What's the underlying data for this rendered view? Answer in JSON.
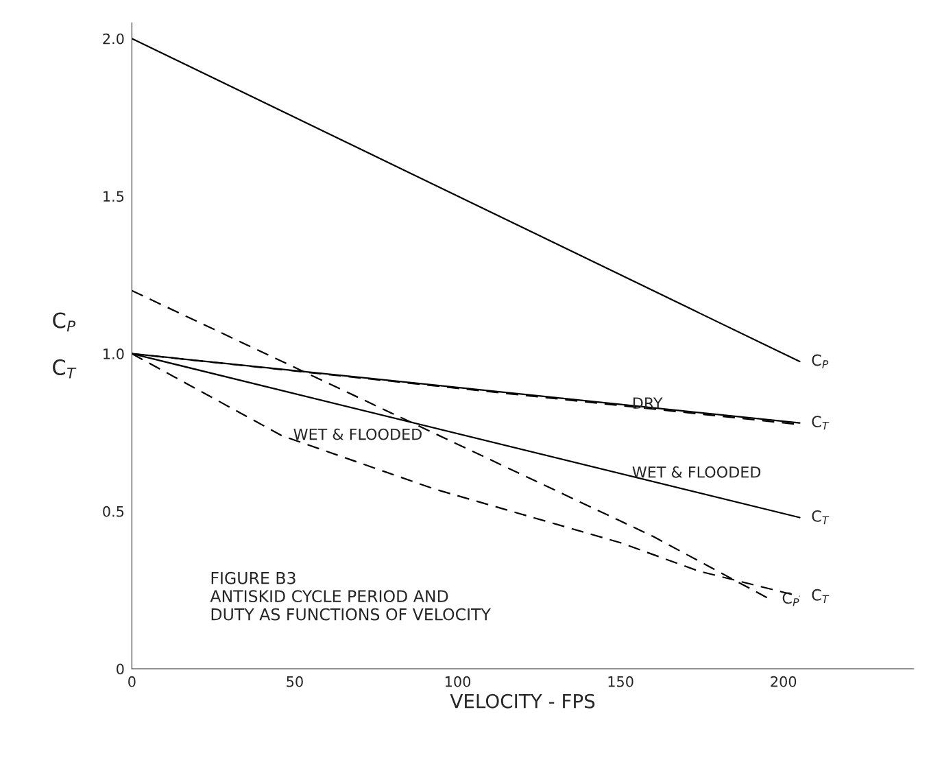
{
  "chart_data": {
    "type": "line",
    "xlabel": "VELOCITY - FPS",
    "ylabel": "C$_{P}$\n\nC$_{T}$",
    "xlim": [
      0,
      240
    ],
    "xticks": [
      0,
      50,
      100,
      150,
      200
    ],
    "ylim": [
      0,
      2.05
    ],
    "yticks": [
      0,
      {
        "value": 0.5,
        "label": "0.5"
      },
      {
        "value": 1.0,
        "label": "1.0"
      },
      {
        "value": 1.5,
        "label": "1.5"
      },
      {
        "value": 2.0,
        "label": "2.0"
      }
    ],
    "grid": false,
    "marker": "none",
    "series": [
      {
        "line_style": "solid",
        "color": "#000000",
        "x": [
          0,
          205
        ],
        "values": [
          2.0,
          0.975
        ]
      },
      {
        "line_style": "solid",
        "color": "#000000",
        "x": [
          0,
          205
        ],
        "values": [
          1.0,
          0.78
        ]
      },
      {
        "line_style": "solid",
        "color": "#000000",
        "x": [
          0,
          205
        ],
        "values": [
          1.0,
          0.48
        ]
      },
      {
        "line_style": "dashed",
        "color": "#000000",
        "x": [
          0,
          80,
          160,
          196
        ],
        "values": [
          1.2,
          0.81,
          0.42,
          0.22
        ]
      },
      {
        "line_style": "dashed",
        "color": "#000000",
        "x": [
          0,
          205
        ],
        "values": [
          1.0,
          0.775
        ]
      },
      {
        "line_style": "dashed",
        "color": "#000000",
        "x": [
          0,
          46,
          93,
          150,
          174,
          205
        ],
        "values": [
          1.0,
          0.74,
          0.57,
          0.4,
          0.31,
          0.23
        ]
      }
    ],
    "annotations": [
      {
        "text": "C$_{P}$",
        "x": 205,
        "y": 0.975
      },
      {
        "text": "C$_{T}$",
        "x": 205,
        "y": 0.78
      },
      {
        "text": "C$_{T}$",
        "x": 205,
        "y": 0.48
      },
      {
        "text": "C$_{T}$",
        "x": 205,
        "y": 0.23
      },
      {
        "text": "C$_{P}$",
        "x": 196,
        "y": 0.22
      },
      {
        "text": "DRY",
        "x": 150,
        "y": 0.839
      },
      {
        "text": "WET & FLOODED",
        "x": 150,
        "y": 0.62
      },
      {
        "text": "WET & FLOODED",
        "x": 46,
        "y": 0.74
      },
      "FIGURE B3\nANTISKID CYCLE PERIOD AND\nDUTY AS FUNCTIONS OF VELOCITY"
    ]
  }
}
